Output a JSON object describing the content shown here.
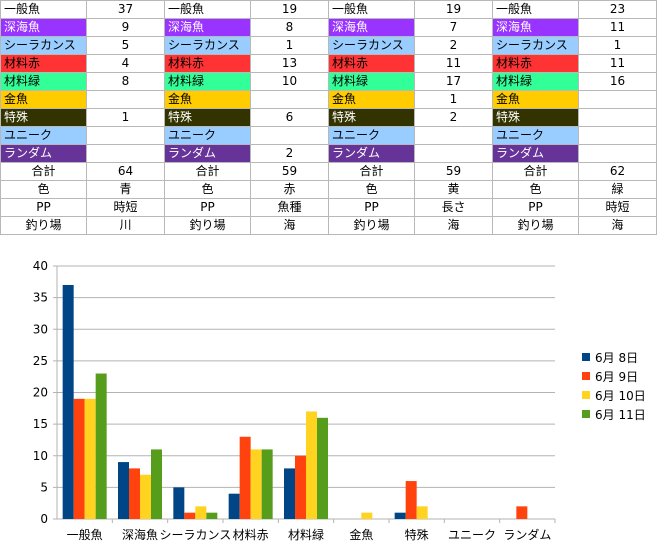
{
  "table": {
    "groups": [
      {
        "rows": [
          {
            "label": "一般魚",
            "value": "37",
            "bg": "#ffffff",
            "fg": "#000000"
          },
          {
            "label": "深海魚",
            "value": "9",
            "bg": "#9933ff",
            "fg": "#ffffff"
          },
          {
            "label": "シーラカンス",
            "value": "5",
            "bg": "#99ccff",
            "fg": "#000000"
          },
          {
            "label": "材料赤",
            "value": "4",
            "bg": "#ff3333",
            "fg": "#000000"
          },
          {
            "label": "材料緑",
            "value": "8",
            "bg": "#33ff99",
            "fg": "#000000"
          },
          {
            "label": "金魚",
            "value": "",
            "bg": "#ffcc00",
            "fg": "#000000"
          },
          {
            "label": "特殊",
            "value": "1",
            "bg": "#333300",
            "fg": "#ffffff"
          },
          {
            "label": "ユニーク",
            "value": "",
            "bg": "#99ccff",
            "fg": "#000000"
          },
          {
            "label": "ランダム",
            "value": "",
            "bg": "#663399",
            "fg": "#ffffff"
          }
        ],
        "meta": [
          {
            "label": "合計",
            "value": "64"
          },
          {
            "label": "色",
            "value": "青"
          },
          {
            "label": "PP",
            "value": "時短"
          },
          {
            "label": "釣り場",
            "value": "川"
          }
        ]
      },
      {
        "rows": [
          {
            "label": "一般魚",
            "value": "19",
            "bg": "#ffffff",
            "fg": "#000000"
          },
          {
            "label": "深海魚",
            "value": "8",
            "bg": "#9933ff",
            "fg": "#ffffff"
          },
          {
            "label": "シーラカンス",
            "value": "1",
            "bg": "#99ccff",
            "fg": "#000000"
          },
          {
            "label": "材料赤",
            "value": "13",
            "bg": "#ff3333",
            "fg": "#000000"
          },
          {
            "label": "材料緑",
            "value": "10",
            "bg": "#33ff99",
            "fg": "#000000"
          },
          {
            "label": "金魚",
            "value": "",
            "bg": "#ffcc00",
            "fg": "#000000"
          },
          {
            "label": "特殊",
            "value": "6",
            "bg": "#333300",
            "fg": "#ffffff"
          },
          {
            "label": "ユニーク",
            "value": "",
            "bg": "#99ccff",
            "fg": "#000000"
          },
          {
            "label": "ランダム",
            "value": "2",
            "bg": "#663399",
            "fg": "#ffffff"
          }
        ],
        "meta": [
          {
            "label": "合計",
            "value": "59"
          },
          {
            "label": "色",
            "value": "赤"
          },
          {
            "label": "PP",
            "value": "魚種"
          },
          {
            "label": "釣り場",
            "value": "海"
          }
        ]
      },
      {
        "rows": [
          {
            "label": "一般魚",
            "value": "19",
            "bg": "#ffffff",
            "fg": "#000000"
          },
          {
            "label": "深海魚",
            "value": "7",
            "bg": "#9933ff",
            "fg": "#ffffff"
          },
          {
            "label": "シーラカンス",
            "value": "2",
            "bg": "#99ccff",
            "fg": "#000000"
          },
          {
            "label": "材料赤",
            "value": "11",
            "bg": "#ff3333",
            "fg": "#000000"
          },
          {
            "label": "材料緑",
            "value": "17",
            "bg": "#33ff99",
            "fg": "#000000"
          },
          {
            "label": "金魚",
            "value": "1",
            "bg": "#ffcc00",
            "fg": "#000000"
          },
          {
            "label": "特殊",
            "value": "2",
            "bg": "#333300",
            "fg": "#ffffff"
          },
          {
            "label": "ユニーク",
            "value": "",
            "bg": "#99ccff",
            "fg": "#000000"
          },
          {
            "label": "ランダム",
            "value": "",
            "bg": "#663399",
            "fg": "#ffffff"
          }
        ],
        "meta": [
          {
            "label": "合計",
            "value": "59"
          },
          {
            "label": "色",
            "value": "黄"
          },
          {
            "label": "PP",
            "value": "長さ"
          },
          {
            "label": "釣り場",
            "value": "海"
          }
        ]
      },
      {
        "rows": [
          {
            "label": "一般魚",
            "value": "23",
            "bg": "#ffffff",
            "fg": "#000000"
          },
          {
            "label": "深海魚",
            "value": "11",
            "bg": "#9933ff",
            "fg": "#ffffff"
          },
          {
            "label": "シーラカンス",
            "value": "1",
            "bg": "#99ccff",
            "fg": "#000000"
          },
          {
            "label": "材料赤",
            "value": "11",
            "bg": "#ff3333",
            "fg": "#000000"
          },
          {
            "label": "材料緑",
            "value": "16",
            "bg": "#33ff99",
            "fg": "#000000"
          },
          {
            "label": "金魚",
            "value": "",
            "bg": "#ffcc00",
            "fg": "#000000"
          },
          {
            "label": "特殊",
            "value": "",
            "bg": "#333300",
            "fg": "#ffffff"
          },
          {
            "label": "ユニーク",
            "value": "",
            "bg": "#99ccff",
            "fg": "#000000"
          },
          {
            "label": "ランダム",
            "value": "",
            "bg": "#663399",
            "fg": "#ffffff"
          }
        ],
        "meta": [
          {
            "label": "合計",
            "value": "62"
          },
          {
            "label": "色",
            "value": "緑"
          },
          {
            "label": "PP",
            "value": "時短"
          },
          {
            "label": "釣り場",
            "value": "海"
          }
        ]
      }
    ]
  },
  "chart_data": {
    "type": "bar",
    "categories": [
      "一般魚",
      "深海魚",
      "シーラカンス",
      "材料赤",
      "材料緑",
      "金魚",
      "特殊",
      "ユニーク",
      "ランダム"
    ],
    "series": [
      {
        "name": "6月 8日",
        "color": "#004586",
        "values": [
          37,
          9,
          5,
          4,
          8,
          0,
          1,
          0,
          0
        ]
      },
      {
        "name": "6月 9日",
        "color": "#ff420e",
        "values": [
          19,
          8,
          1,
          13,
          10,
          0,
          6,
          0,
          2
        ]
      },
      {
        "name": "6月 10日",
        "color": "#ffd320",
        "values": [
          19,
          7,
          2,
          11,
          17,
          1,
          2,
          0,
          0
        ]
      },
      {
        "name": "6月 11日",
        "color": "#579d1c",
        "values": [
          23,
          11,
          1,
          11,
          16,
          0,
          0,
          0,
          0
        ]
      }
    ],
    "yticks": [
      "0",
      "5",
      "10",
      "15",
      "20",
      "25",
      "30",
      "35",
      "40"
    ],
    "ylim": [
      0,
      40
    ],
    "grid": true,
    "legend": "right"
  }
}
